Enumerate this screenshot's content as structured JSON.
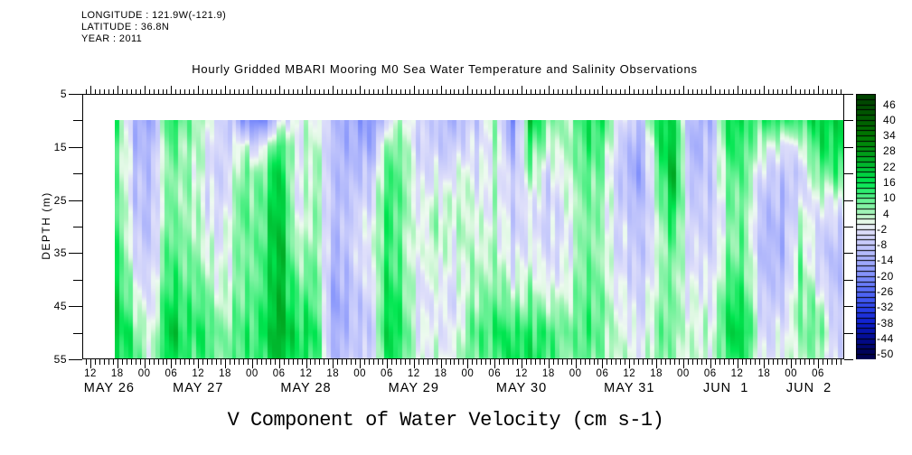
{
  "header": {
    "longitude": "LONGITUDE : 121.9W(-121.9)",
    "latitude": "LATITUDE : 36.8N",
    "year": "YEAR : 2011"
  },
  "title": "Hourly Gridded MBARI Mooring M0 Sea Water Temperature and Salinity Observations",
  "bottom_title": "V Component of Water Velocity (cm s-1)",
  "chart_data": {
    "type": "heatmap",
    "ylabel": "DEPTH (m)",
    "y_ticks": [
      5,
      15,
      25,
      35,
      45,
      55
    ],
    "depth_range_m": [
      5,
      55
    ],
    "time_axis": {
      "domain_hours_from_may26_00": [
        10.2,
        179.8
      ],
      "major_tick_first_hour": 12,
      "major_tick_step_hours": 6,
      "minor_tick_step_hours": 1,
      "hour_labels": [
        "12",
        "18",
        "00",
        "06",
        "12",
        "18",
        "00",
        "06",
        "12",
        "18",
        "00",
        "06",
        "12",
        "18",
        "00",
        "06",
        "12",
        "18",
        "00",
        "06",
        "12",
        "18",
        "00",
        "06",
        "12",
        "18",
        "00",
        "06"
      ],
      "date_labels": [
        {
          "text": "MAY 26",
          "x_hour": 16.2
        },
        {
          "text": "MAY 27",
          "x_hour": 36
        },
        {
          "text": "MAY 28",
          "x_hour": 60
        },
        {
          "text": "MAY 29",
          "x_hour": 84
        },
        {
          "text": "MAY 30",
          "x_hour": 108
        },
        {
          "text": "MAY 31",
          "x_hour": 132
        },
        {
          "text": "JUN  1",
          "x_hour": 153.5
        },
        {
          "text": "JUN  2",
          "x_hour": 172
        }
      ]
    },
    "colorbar": {
      "max": 50,
      "min": -52,
      "segment_step": 2,
      "labels": [
        46,
        40,
        34,
        28,
        22,
        16,
        10,
        4,
        -2,
        -8,
        -14,
        -20,
        -26,
        -32,
        -38,
        -44,
        -50
      ]
    },
    "colormap_stops": [
      {
        "v": -50,
        "c": "#00004f"
      },
      {
        "v": -44,
        "c": "#020b8e"
      },
      {
        "v": -38,
        "c": "#0d1ecc"
      },
      {
        "v": -32,
        "c": "#2c44ea"
      },
      {
        "v": -26,
        "c": "#5469f5"
      },
      {
        "v": -20,
        "c": "#7e8efb"
      },
      {
        "v": -14,
        "c": "#a3acfb"
      },
      {
        "v": -8,
        "c": "#c3c7fb"
      },
      {
        "v": -2,
        "c": "#e0e0fa"
      },
      {
        "v": 0,
        "c": "#eefaf0"
      },
      {
        "v": 2,
        "c": "#dcf8e0"
      },
      {
        "v": 4,
        "c": "#aef5be"
      },
      {
        "v": 10,
        "c": "#5af08c"
      },
      {
        "v": 16,
        "c": "#00e650"
      },
      {
        "v": 22,
        "c": "#00be32"
      },
      {
        "v": 28,
        "c": "#009614"
      },
      {
        "v": 34,
        "c": "#007800"
      },
      {
        "v": 40,
        "c": "#005e00"
      },
      {
        "v": 48,
        "c": "#004400"
      }
    ],
    "grid": {
      "data_start_hour": 17.5,
      "depths_m": [
        10,
        15,
        20,
        25,
        30,
        35,
        40,
        45,
        50,
        55
      ],
      "times_hours": [
        18,
        22,
        26,
        30,
        34,
        38,
        42,
        46,
        50,
        54,
        58,
        62,
        66,
        70,
        74,
        78,
        82,
        86,
        90,
        94,
        98,
        102,
        106,
        110,
        114,
        118,
        122,
        126,
        130,
        134,
        138,
        142,
        146,
        150,
        154,
        158,
        162,
        166,
        170,
        174,
        178
      ],
      "values_cm_s": [
        [
          10,
          8,
          8,
          8,
          10,
          12,
          14,
          16,
          18,
          14
        ],
        [
          -12,
          -10,
          -8,
          -8,
          -6,
          -4,
          0,
          4,
          10,
          12
        ],
        [
          -14,
          -10,
          -8,
          -8,
          -8,
          -6,
          -4,
          -2,
          0,
          2
        ],
        [
          16,
          10,
          8,
          8,
          10,
          12,
          14,
          18,
          22,
          18
        ],
        [
          8,
          6,
          6,
          6,
          6,
          8,
          10,
          12,
          14,
          12
        ],
        [
          0,
          -2,
          -4,
          -4,
          -2,
          0,
          4,
          8,
          12,
          10
        ],
        [
          -4,
          -4,
          -4,
          -2,
          0,
          2,
          2,
          4,
          8,
          8
        ],
        [
          -18,
          0,
          6,
          8,
          8,
          6,
          6,
          8,
          10,
          10
        ],
        [
          -22,
          -2,
          8,
          10,
          10,
          12,
          12,
          14,
          16,
          14
        ],
        [
          -6,
          12,
          18,
          20,
          22,
          22,
          22,
          22,
          24,
          20
        ],
        [
          2,
          2,
          0,
          0,
          2,
          6,
          10,
          14,
          18,
          16
        ],
        [
          0,
          2,
          4,
          4,
          4,
          6,
          8,
          10,
          14,
          12
        ],
        [
          -8,
          -8,
          -8,
          -8,
          -8,
          -10,
          -12,
          -14,
          -12,
          -10
        ],
        [
          -16,
          -14,
          -12,
          -10,
          -8,
          -8,
          -10,
          -12,
          -10,
          -8
        ],
        [
          -18,
          -14,
          -8,
          -4,
          0,
          0,
          -2,
          -6,
          -8,
          -6
        ],
        [
          -6,
          6,
          10,
          12,
          12,
          12,
          14,
          16,
          18,
          14
        ],
        [
          4,
          6,
          8,
          8,
          6,
          6,
          8,
          10,
          12,
          10
        ],
        [
          -6,
          -6,
          -4,
          -2,
          0,
          0,
          -2,
          -4,
          -2,
          0
        ],
        [
          -10,
          -8,
          -4,
          2,
          4,
          2,
          0,
          -2,
          -2,
          0
        ],
        [
          -10,
          -4,
          2,
          4,
          4,
          2,
          0,
          -2,
          2,
          4
        ],
        [
          -8,
          -6,
          -4,
          -2,
          0,
          2,
          4,
          6,
          10,
          8
        ],
        [
          8,
          6,
          4,
          4,
          4,
          6,
          8,
          12,
          16,
          12
        ],
        [
          -24,
          -16,
          -10,
          -8,
          -8,
          -6,
          -2,
          4,
          12,
          14
        ],
        [
          22,
          14,
          8,
          2,
          0,
          2,
          6,
          10,
          16,
          18
        ],
        [
          6,
          0,
          -6,
          -8,
          -8,
          -6,
          -4,
          2,
          10,
          10
        ],
        [
          6,
          6,
          4,
          2,
          0,
          0,
          2,
          6,
          10,
          8
        ],
        [
          12,
          10,
          8,
          6,
          6,
          6,
          8,
          8,
          10,
          8
        ],
        [
          16,
          12,
          8,
          8,
          6,
          6,
          8,
          10,
          10,
          8
        ],
        [
          -4,
          -8,
          -10,
          -8,
          -6,
          -6,
          -4,
          -2,
          0,
          2
        ],
        [
          -8,
          -14,
          -16,
          -12,
          -8,
          -8,
          -6,
          -4,
          -2,
          0
        ],
        [
          14,
          10,
          6,
          2,
          0,
          0,
          2,
          4,
          6,
          6
        ],
        [
          18,
          22,
          24,
          20,
          14,
          10,
          8,
          8,
          8,
          6
        ],
        [
          -12,
          -14,
          -12,
          -8,
          -6,
          -4,
          -2,
          0,
          2,
          2
        ],
        [
          -14,
          -10,
          -8,
          -8,
          -8,
          -6,
          -4,
          -2,
          0,
          0
        ],
        [
          18,
          14,
          10,
          8,
          6,
          8,
          12,
          16,
          18,
          14
        ],
        [
          12,
          10,
          8,
          6,
          6,
          6,
          8,
          12,
          16,
          12
        ],
        [
          14,
          4,
          -4,
          -8,
          -10,
          -10,
          -8,
          -6,
          -4,
          -2
        ],
        [
          12,
          -4,
          -10,
          -12,
          -14,
          -14,
          -12,
          -8,
          -4,
          -2
        ],
        [
          14,
          2,
          -4,
          -2,
          6,
          8,
          10,
          10,
          8,
          6
        ],
        [
          16,
          12,
          6,
          -2,
          -6,
          -8,
          -4,
          4,
          8,
          4
        ],
        [
          20,
          18,
          12,
          2,
          -4,
          -8,
          -8,
          -6,
          -4,
          -4
        ]
      ]
    }
  }
}
